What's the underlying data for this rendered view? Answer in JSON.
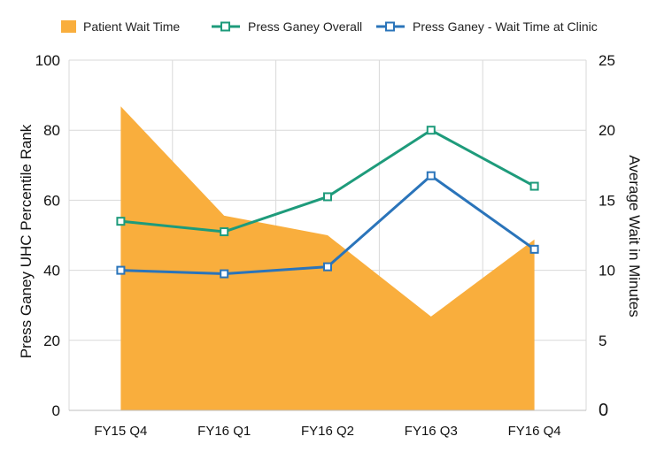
{
  "chart_data": {
    "type": "line",
    "categories": [
      "FY15 Q4",
      "FY16 Q1",
      "FY16 Q2",
      "FY16 Q3",
      "FY16 Q4"
    ],
    "series": [
      {
        "name": "Patient Wait Time",
        "type": "area",
        "axis": "right",
        "color": "#F9AE3D",
        "values": [
          21.7,
          13.9,
          12.5,
          6.7,
          12.2
        ]
      },
      {
        "name": "Press Ganey Overall",
        "type": "line",
        "axis": "left",
        "color": "#1E9B7B",
        "values": [
          54,
          51,
          61,
          80,
          64
        ]
      },
      {
        "name": "Press Ganey - Wait Time at Clinic",
        "type": "line",
        "axis": "left",
        "color": "#2A74BA",
        "values": [
          40,
          39,
          41,
          67,
          46
        ]
      }
    ],
    "y_left": {
      "label": "Press Ganey UHC Percentile Rank",
      "ylim": [
        0,
        100
      ],
      "ticks": [
        "0",
        "20",
        "40",
        "60",
        "80",
        "100"
      ]
    },
    "y_right": {
      "label": "Average Wait in Minutes",
      "ylim": [
        0,
        25
      ],
      "ticks": [
        "0",
        "5",
        "10",
        "15",
        "20",
        "25"
      ]
    },
    "grid": true,
    "legend_position": "top"
  }
}
